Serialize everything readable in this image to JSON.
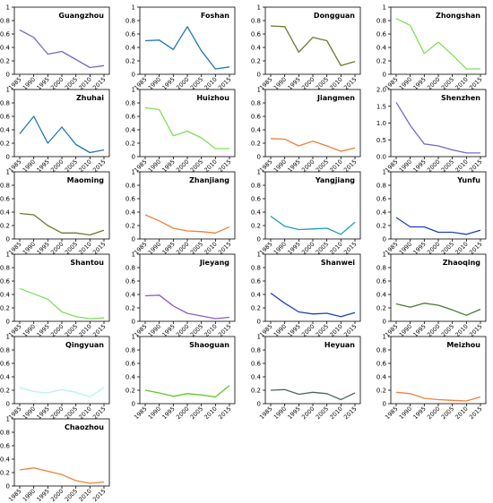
{
  "chart_data": {
    "type": "line",
    "x": [
      1985,
      1990,
      1995,
      2000,
      2005,
      2010,
      2015
    ],
    "x_tick_labels": [
      "1985",
      "1990",
      "1995",
      "2000",
      "2005",
      "2010",
      "2015"
    ],
    "grid": false,
    "subplots": [
      {
        "title": "Guangzhou",
        "color": "#7b68c8",
        "ylim": [
          0,
          1
        ],
        "yticks": [
          0,
          0.2,
          0.4,
          0.6,
          0.8,
          1
        ],
        "values": [
          0.66,
          0.55,
          0.3,
          0.34,
          0.22,
          0.1,
          0.13
        ]
      },
      {
        "title": "Foshan",
        "color": "#1f77b4",
        "ylim": [
          0,
          1
        ],
        "yticks": [
          0,
          0.2,
          0.4,
          0.6,
          0.8,
          1
        ],
        "values": [
          0.5,
          0.51,
          0.37,
          0.71,
          0.35,
          0.08,
          0.11
        ]
      },
      {
        "title": "Dongguan",
        "color": "#6b7a2e",
        "ylim": [
          0,
          1
        ],
        "yticks": [
          0,
          0.2,
          0.4,
          0.6,
          0.8,
          1
        ],
        "values": [
          0.72,
          0.71,
          0.33,
          0.55,
          0.5,
          0.13,
          0.19
        ]
      },
      {
        "title": "Zhongshan",
        "color": "#7ee05a",
        "ylim": [
          0,
          1
        ],
        "yticks": [
          0,
          0.2,
          0.4,
          0.6,
          0.8,
          1
        ],
        "values": [
          0.83,
          0.73,
          0.31,
          0.48,
          0.29,
          0.08,
          0.08
        ]
      },
      {
        "title": "Zhuhai",
        "color": "#1f77b4",
        "ylim": [
          0,
          1
        ],
        "yticks": [
          0,
          0.2,
          0.4,
          0.6,
          0.8,
          1
        ],
        "values": [
          0.34,
          0.6,
          0.2,
          0.44,
          0.18,
          0.06,
          0.1
        ]
      },
      {
        "title": "Huizhou",
        "color": "#7ee05a",
        "ylim": [
          0,
          1
        ],
        "yticks": [
          0,
          0.2,
          0.4,
          0.6,
          0.8,
          1
        ],
        "values": [
          0.73,
          0.7,
          0.31,
          0.38,
          0.28,
          0.12,
          0.12
        ]
      },
      {
        "title": "Jiangmen",
        "color": "#f0803c",
        "ylim": [
          0,
          1
        ],
        "yticks": [
          0,
          0.2,
          0.4,
          0.6,
          0.8,
          1
        ],
        "values": [
          0.27,
          0.26,
          0.16,
          0.23,
          0.16,
          0.08,
          0.13
        ]
      },
      {
        "title": "Shenzhen",
        "color": "#7b68c8",
        "ylim": [
          0,
          2
        ],
        "yticks": [
          0,
          0.5,
          1,
          1.5,
          2
        ],
        "yticklabels": [
          "0.0",
          "0.5",
          "1.0",
          "1.5",
          "2.0"
        ],
        "values": [
          1.62,
          0.93,
          0.38,
          0.32,
          0.2,
          0.11,
          0.11
        ]
      },
      {
        "title": "Maoming",
        "color": "#6b7a2e",
        "ylim": [
          0,
          1
        ],
        "yticks": [
          0,
          0.2,
          0.4,
          0.6,
          0.8,
          1
        ],
        "values": [
          0.38,
          0.36,
          0.2,
          0.09,
          0.09,
          0.06,
          0.13
        ]
      },
      {
        "title": "Zhanjiang",
        "color": "#f0803c",
        "ylim": [
          0,
          1
        ],
        "yticks": [
          0,
          0.2,
          0.4,
          0.6,
          0.8,
          1
        ],
        "values": [
          0.36,
          0.27,
          0.16,
          0.12,
          0.11,
          0.09,
          0.18
        ]
      },
      {
        "title": "Yangjiang",
        "color": "#17a2b8",
        "ylim": [
          0,
          1
        ],
        "yticks": [
          0,
          0.2,
          0.4,
          0.6,
          0.8,
          1
        ],
        "values": [
          0.34,
          0.19,
          0.14,
          0.15,
          0.16,
          0.07,
          0.25
        ]
      },
      {
        "title": "Yunfu",
        "color": "#1f3fbf",
        "ylim": [
          0,
          1
        ],
        "yticks": [
          0,
          0.2,
          0.4,
          0.6,
          0.8,
          1
        ],
        "values": [
          0.32,
          0.18,
          0.18,
          0.1,
          0.1,
          0.07,
          0.13
        ]
      },
      {
        "title": "Shantou",
        "color": "#7ee05a",
        "ylim": [
          0,
          1
        ],
        "yticks": [
          0,
          0.2,
          0.4,
          0.6,
          0.8,
          1
        ],
        "values": [
          0.49,
          0.41,
          0.33,
          0.14,
          0.07,
          0.04,
          0.05
        ]
      },
      {
        "title": "Jieyang",
        "color": "#8a5ccc",
        "ylim": [
          0,
          1
        ],
        "yticks": [
          0,
          0.2,
          0.4,
          0.6,
          0.8,
          1
        ],
        "values": [
          0.38,
          0.39,
          0.23,
          0.12,
          0.08,
          0.04,
          0.06
        ]
      },
      {
        "title": "Shanwei",
        "color": "#1f3fbf",
        "ylim": [
          0,
          1
        ],
        "yticks": [
          0,
          0.2,
          0.4,
          0.6,
          0.8,
          1
        ],
        "values": [
          0.42,
          0.27,
          0.14,
          0.11,
          0.12,
          0.07,
          0.13
        ]
      },
      {
        "title": "Zhaoqing",
        "color": "#4a7a3a",
        "ylim": [
          0,
          1
        ],
        "yticks": [
          0,
          0.2,
          0.4,
          0.6,
          0.8,
          1
        ],
        "values": [
          0.26,
          0.21,
          0.27,
          0.24,
          0.17,
          0.09,
          0.18
        ]
      },
      {
        "title": "Qingyuan",
        "color": "#b8f0f0",
        "ylim": [
          0,
          1
        ],
        "yticks": [
          0,
          0.2,
          0.4,
          0.6,
          0.8,
          1
        ],
        "values": [
          0.24,
          0.18,
          0.16,
          0.21,
          0.17,
          0.1,
          0.24
        ]
      },
      {
        "title": "Shaoguan",
        "color": "#5cc82a",
        "ylim": [
          0,
          1
        ],
        "yticks": [
          0,
          0.2,
          0.4,
          0.6,
          0.8,
          1
        ],
        "values": [
          0.2,
          0.16,
          0.11,
          0.15,
          0.13,
          0.1,
          0.27
        ]
      },
      {
        "title": "Heyuan",
        "color": "#4a6a5a",
        "ylim": [
          0,
          1
        ],
        "yticks": [
          0,
          0.2,
          0.4,
          0.6,
          0.8,
          1
        ],
        "values": [
          0.2,
          0.21,
          0.14,
          0.17,
          0.15,
          0.06,
          0.16
        ]
      },
      {
        "title": "Meizhou",
        "color": "#f0803c",
        "ylim": [
          0,
          1
        ],
        "yticks": [
          0,
          0.2,
          0.4,
          0.6,
          0.8,
          1
        ],
        "values": [
          0.17,
          0.15,
          0.08,
          0.06,
          0.05,
          0.04,
          0.1
        ]
      },
      {
        "title": "Chaozhou",
        "color": "#f0803c",
        "ylim": [
          0,
          1
        ],
        "yticks": [
          0,
          0.2,
          0.4,
          0.6,
          0.8,
          1
        ],
        "values": [
          0.24,
          0.27,
          0.22,
          0.17,
          0.08,
          0.04,
          0.06
        ]
      }
    ]
  }
}
